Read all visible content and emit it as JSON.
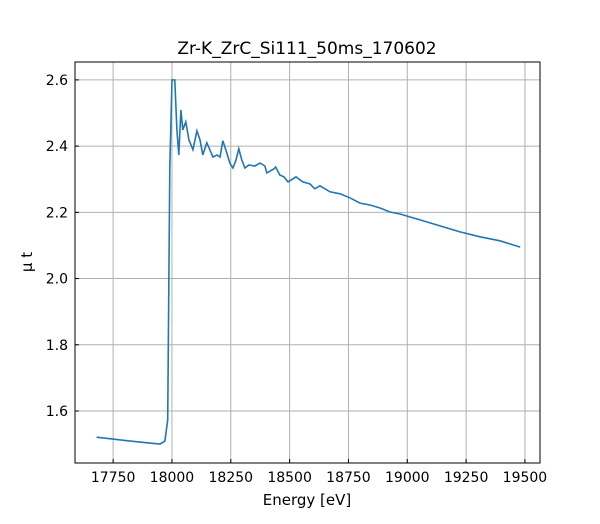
{
  "chart_data": {
    "type": "line",
    "title": "Zr-K_ZrC_Si111_50ms_170602",
    "xlabel": "Energy [eV]",
    "ylabel": "μ t",
    "xlim": [
      17588,
      19564
    ],
    "ylim": [
      1.443,
      2.654
    ],
    "xticks": [
      17750,
      18000,
      18250,
      18500,
      18750,
      19000,
      19250,
      19500
    ],
    "yticks": [
      1.6,
      1.8,
      2.0,
      2.2,
      2.4,
      2.6
    ],
    "ytick_labels": [
      "1.6",
      "1.8",
      "2.0",
      "2.2",
      "2.4",
      "2.6"
    ],
    "grid": true,
    "series": [
      {
        "name": "mu t",
        "color": "#1f77b4",
        "x": [
          17680,
          17863,
          17949,
          17970,
          17982,
          17991,
          18000,
          18012,
          18021,
          18029,
          18038,
          18046,
          18059,
          18072,
          18089,
          18106,
          18119,
          18131,
          18148,
          18161,
          18174,
          18191,
          18204,
          18216,
          18229,
          18246,
          18259,
          18272,
          18284,
          18297,
          18310,
          18327,
          18352,
          18374,
          18395,
          18403,
          18433,
          18441,
          18458,
          18476,
          18493,
          18527,
          18556,
          18586,
          18607,
          18629,
          18671,
          18714,
          18756,
          18799,
          18841,
          18884,
          18926,
          18969,
          19054,
          19139,
          19224,
          19309,
          19394,
          19480
        ],
        "y": [
          1.521,
          1.506,
          1.5,
          1.509,
          1.573,
          2.335,
          2.6,
          2.6,
          2.449,
          2.373,
          2.509,
          2.449,
          2.473,
          2.419,
          2.389,
          2.446,
          2.419,
          2.373,
          2.41,
          2.389,
          2.367,
          2.373,
          2.367,
          2.416,
          2.389,
          2.349,
          2.334,
          2.358,
          2.392,
          2.358,
          2.334,
          2.343,
          2.34,
          2.349,
          2.34,
          2.319,
          2.331,
          2.337,
          2.313,
          2.307,
          2.292,
          2.307,
          2.292,
          2.286,
          2.271,
          2.28,
          2.262,
          2.256,
          2.244,
          2.228,
          2.222,
          2.213,
          2.201,
          2.195,
          2.177,
          2.159,
          2.141,
          2.126,
          2.114,
          2.095
        ]
      }
    ]
  }
}
